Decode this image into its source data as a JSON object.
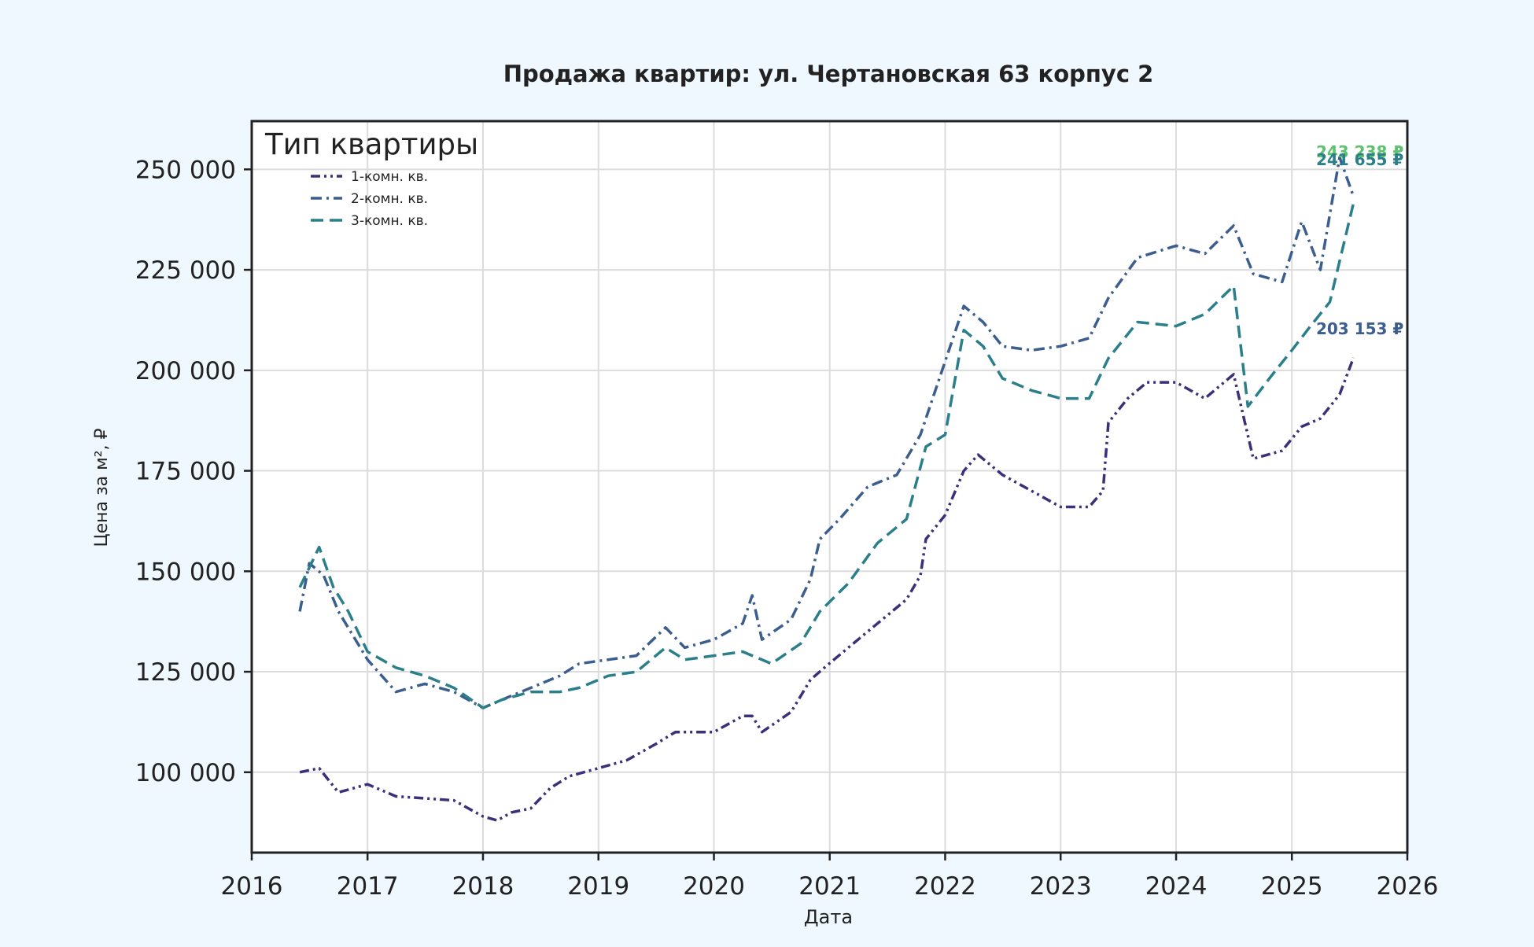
{
  "colors": {
    "background": "#f0f8ff",
    "plot_background": "#ffffff",
    "grid": "#dcdcdc",
    "axis": "#222222",
    "text": "#222222",
    "series_1": "#3e2f78",
    "series_2": "#3b5e8e",
    "series_3": "#2a7f8b",
    "annotation_top": "#5cc26b"
  },
  "chart_data": {
    "type": "line",
    "title": "Продажа квартир: ул. Чертановская 63 корпус 2",
    "xlabel": "Дата",
    "ylabel": "Цена за м², ₽",
    "x_type": "date",
    "xlim": [
      "2016-01-01",
      "2026-01-01"
    ],
    "ylim": [
      80000,
      262000
    ],
    "x_ticks": [
      "2016",
      "2017",
      "2018",
      "2019",
      "2020",
      "2021",
      "2022",
      "2023",
      "2024",
      "2025",
      "2026"
    ],
    "y_ticks": [
      100000,
      125000,
      150000,
      175000,
      200000,
      225000,
      250000
    ],
    "y_tick_labels": [
      "100 000",
      "125 000",
      "150 000",
      "175 000",
      "200 000",
      "225 000",
      "250 000"
    ],
    "grid": true,
    "legend": {
      "title": "Тип квартиры",
      "placement": "top-left"
    },
    "series": [
      {
        "name": "1-комн. кв.",
        "line_style": "dash-dot-dot",
        "points": [
          [
            "2016-06-01",
            100000
          ],
          [
            "2016-08-01",
            101000
          ],
          [
            "2016-10-01",
            95000
          ],
          [
            "2017-01-01",
            97000
          ],
          [
            "2017-04-01",
            94000
          ],
          [
            "2017-07-01",
            93500
          ],
          [
            "2017-10-01",
            93000
          ],
          [
            "2018-01-01",
            89000
          ],
          [
            "2018-02-15",
            88000
          ],
          [
            "2018-04-01",
            90000
          ],
          [
            "2018-06-01",
            91000
          ],
          [
            "2018-08-01",
            96000
          ],
          [
            "2018-10-01",
            99000
          ],
          [
            "2019-01-01",
            101000
          ],
          [
            "2019-04-01",
            103000
          ],
          [
            "2019-07-01",
            107000
          ],
          [
            "2019-09-01",
            110000
          ],
          [
            "2020-01-01",
            110000
          ],
          [
            "2020-04-01",
            114000
          ],
          [
            "2020-05-01",
            114000
          ],
          [
            "2020-06-01",
            110000
          ],
          [
            "2020-09-01",
            115000
          ],
          [
            "2020-11-01",
            123000
          ],
          [
            "2020-12-15",
            126000
          ],
          [
            "2021-03-01",
            131000
          ],
          [
            "2021-06-01",
            137000
          ],
          [
            "2021-09-01",
            143000
          ],
          [
            "2021-10-15",
            149000
          ],
          [
            "2021-11-01",
            158000
          ],
          [
            "2022-01-01",
            164000
          ],
          [
            "2022-03-01",
            175000
          ],
          [
            "2022-04-15",
            179000
          ],
          [
            "2022-07-01",
            174000
          ],
          [
            "2022-10-01",
            170000
          ],
          [
            "2023-01-01",
            166000
          ],
          [
            "2023-04-01",
            166000
          ],
          [
            "2023-05-15",
            170000
          ],
          [
            "2023-06-01",
            187000
          ],
          [
            "2023-08-01",
            193000
          ],
          [
            "2023-10-01",
            197000
          ],
          [
            "2024-01-01",
            197000
          ],
          [
            "2024-04-01",
            193000
          ],
          [
            "2024-07-01",
            199000
          ],
          [
            "2024-09-01",
            178000
          ],
          [
            "2024-12-01",
            180000
          ],
          [
            "2025-02-01",
            186000
          ],
          [
            "2025-04-01",
            188000
          ],
          [
            "2025-06-01",
            194000
          ],
          [
            "2025-07-15",
            203153
          ]
        ]
      },
      {
        "name": "2-комн. кв.",
        "line_style": "dash-dot",
        "points": [
          [
            "2016-06-01",
            140000
          ],
          [
            "2016-07-01",
            152000
          ],
          [
            "2016-08-15",
            149000
          ],
          [
            "2016-10-01",
            140000
          ],
          [
            "2017-01-01",
            128000
          ],
          [
            "2017-04-01",
            120000
          ],
          [
            "2017-07-01",
            122000
          ],
          [
            "2017-10-01",
            120000
          ],
          [
            "2018-01-01",
            116000
          ],
          [
            "2018-03-01",
            118000
          ],
          [
            "2018-06-01",
            121000
          ],
          [
            "2018-09-01",
            124000
          ],
          [
            "2018-11-01",
            127000
          ],
          [
            "2019-02-01",
            128000
          ],
          [
            "2019-05-01",
            129000
          ],
          [
            "2019-08-01",
            136000
          ],
          [
            "2019-10-01",
            131000
          ],
          [
            "2020-01-01",
            133000
          ],
          [
            "2020-04-01",
            137000
          ],
          [
            "2020-05-01",
            144000
          ],
          [
            "2020-06-01",
            133000
          ],
          [
            "2020-09-01",
            138000
          ],
          [
            "2020-11-01",
            148000
          ],
          [
            "2020-12-01",
            158000
          ],
          [
            "2021-02-01",
            163000
          ],
          [
            "2021-05-01",
            171000
          ],
          [
            "2021-08-01",
            174000
          ],
          [
            "2021-10-15",
            184000
          ],
          [
            "2021-12-01",
            195000
          ],
          [
            "2022-03-01",
            216000
          ],
          [
            "2022-05-01",
            212000
          ],
          [
            "2022-07-01",
            206000
          ],
          [
            "2022-10-01",
            205000
          ],
          [
            "2023-01-01",
            206000
          ],
          [
            "2023-04-01",
            208000
          ],
          [
            "2023-06-01",
            218000
          ],
          [
            "2023-09-01",
            228000
          ],
          [
            "2024-01-01",
            231000
          ],
          [
            "2024-04-01",
            229000
          ],
          [
            "2024-07-01",
            236000
          ],
          [
            "2024-09-01",
            224000
          ],
          [
            "2024-12-01",
            222000
          ],
          [
            "2025-02-01",
            237000
          ],
          [
            "2025-04-01",
            225000
          ],
          [
            "2025-06-01",
            253000
          ],
          [
            "2025-07-15",
            243238
          ]
        ]
      },
      {
        "name": "3-комн. кв.",
        "line_style": "dashed",
        "points": [
          [
            "2016-06-01",
            146000
          ],
          [
            "2016-08-01",
            156000
          ],
          [
            "2016-09-15",
            146000
          ],
          [
            "2016-11-01",
            140000
          ],
          [
            "2017-01-01",
            130000
          ],
          [
            "2017-04-01",
            126000
          ],
          [
            "2017-07-01",
            124000
          ],
          [
            "2017-10-01",
            121000
          ],
          [
            "2018-01-01",
            116000
          ],
          [
            "2018-03-01",
            118000
          ],
          [
            "2018-06-01",
            120000
          ],
          [
            "2018-09-01",
            120000
          ],
          [
            "2018-11-01",
            121000
          ],
          [
            "2019-02-01",
            124000
          ],
          [
            "2019-05-01",
            125000
          ],
          [
            "2019-08-01",
            131000
          ],
          [
            "2019-10-01",
            128000
          ],
          [
            "2020-01-01",
            129000
          ],
          [
            "2020-04-01",
            130000
          ],
          [
            "2020-07-01",
            127000
          ],
          [
            "2020-10-01",
            132000
          ],
          [
            "2020-12-01",
            140000
          ],
          [
            "2021-03-01",
            147000
          ],
          [
            "2021-06-01",
            157000
          ],
          [
            "2021-09-01",
            163000
          ],
          [
            "2021-11-01",
            181000
          ],
          [
            "2022-01-01",
            184000
          ],
          [
            "2022-03-01",
            210000
          ],
          [
            "2022-05-01",
            206000
          ],
          [
            "2022-07-01",
            198000
          ],
          [
            "2022-10-01",
            195000
          ],
          [
            "2023-01-01",
            193000
          ],
          [
            "2023-04-01",
            193000
          ],
          [
            "2023-06-01",
            203000
          ],
          [
            "2023-09-01",
            212000
          ],
          [
            "2024-01-01",
            211000
          ],
          [
            "2024-04-01",
            214000
          ],
          [
            "2024-07-01",
            221000
          ],
          [
            "2024-08-15",
            191000
          ],
          [
            "2024-11-01",
            199000
          ],
          [
            "2025-01-01",
            205000
          ],
          [
            "2025-03-01",
            211000
          ],
          [
            "2025-05-01",
            217000
          ],
          [
            "2025-07-15",
            241655
          ]
        ]
      }
    ],
    "annotations": [
      {
        "text": "243 238 ₽",
        "x": "2025-07-15",
        "y": 253000,
        "color_key": "annotation_top"
      },
      {
        "text": "241 655 ₽",
        "x": "2025-07-15",
        "y": 251000,
        "color_key": "series_3"
      },
      {
        "text": "203 153 ₽",
        "x": "2025-07-15",
        "y": 209000,
        "color_key": "series_2"
      }
    ]
  }
}
